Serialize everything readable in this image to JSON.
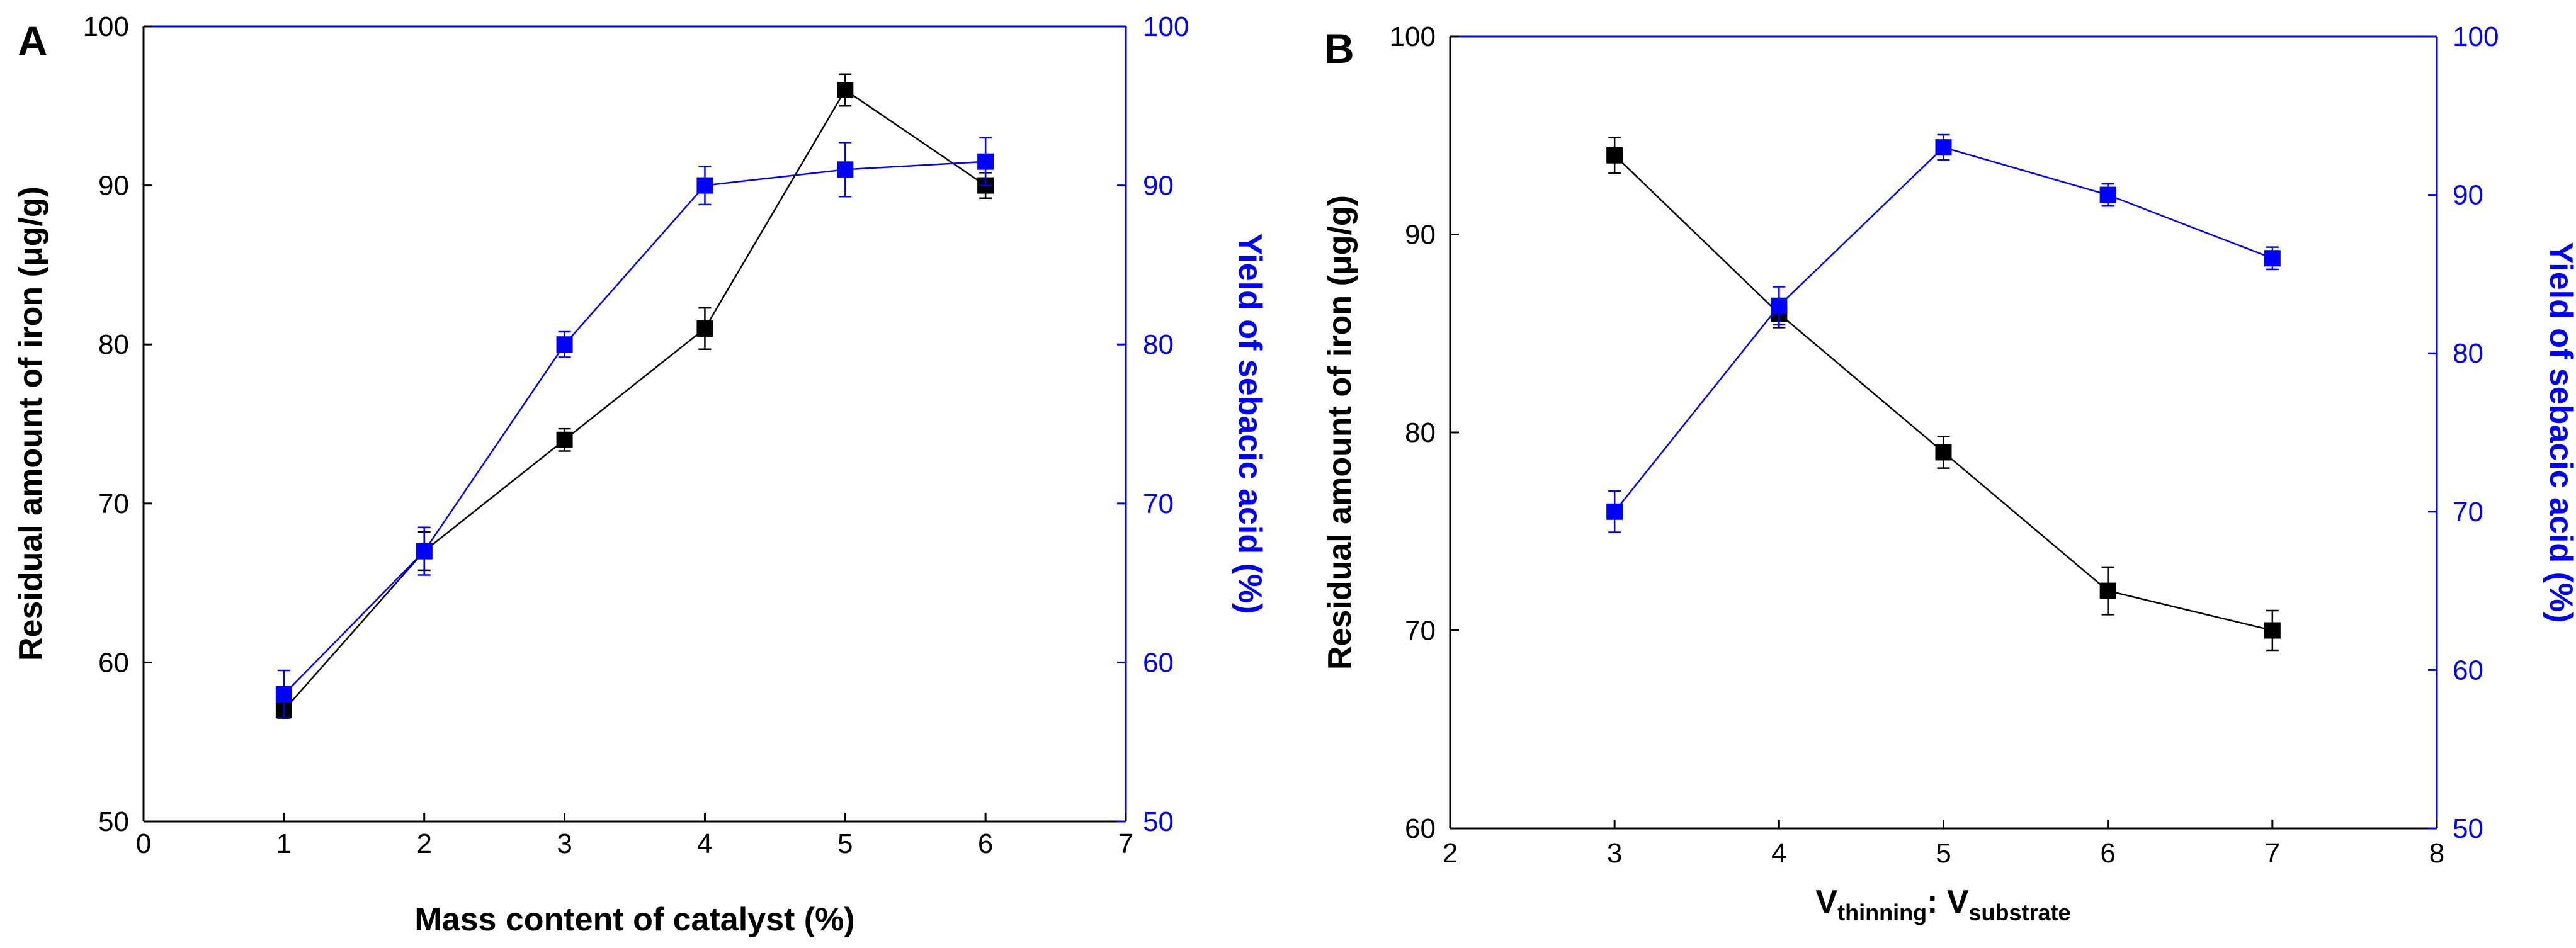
{
  "chart_data": [
    {
      "panel": "A",
      "type": "line",
      "xlabel": "Mass content of catalyst (%)",
      "ylabel_left": "Residual amount of iron (μg/g)",
      "ylabel_right": "Yield of sebacic acid (%)",
      "xlim": [
        0,
        7
      ],
      "ylim_left": [
        50,
        100
      ],
      "ylim_right": [
        50,
        100
      ],
      "xticks": [
        "0",
        "1",
        "2",
        "3",
        "4",
        "5",
        "6",
        "7"
      ],
      "yticks_left": [
        "50",
        "60",
        "70",
        "80",
        "90",
        "100"
      ],
      "yticks_right": [
        "50",
        "60",
        "70",
        "80",
        "90",
        "100"
      ],
      "series": [
        {
          "name": "Residual amount of iron",
          "axis": "left",
          "color": "#000000",
          "x": [
            1,
            2,
            3,
            4,
            5,
            6
          ],
          "y": [
            57,
            67,
            74,
            81,
            96,
            90
          ],
          "err": [
            0.5,
            1.2,
            0.7,
            1.3,
            1.0,
            0.8
          ]
        },
        {
          "name": "Yield of sebacic acid",
          "axis": "right",
          "color": "#0000ff",
          "x": [
            1,
            2,
            3,
            4,
            5,
            6
          ],
          "y": [
            58,
            67,
            80,
            90,
            91,
            91.5
          ],
          "err": [
            1.5,
            1.5,
            0.8,
            1.2,
            1.7,
            1.5
          ]
        }
      ]
    },
    {
      "panel": "B",
      "type": "line",
      "xlabel_main": "V",
      "xlabel_sub1": "thinning",
      "xlabel_sep": ": V",
      "xlabel_sub2": "substrate",
      "ylabel_left": "Residual amount of iron (μg/g)",
      "ylabel_right": "Yield of sebacic acid (%)",
      "xlim": [
        2,
        8
      ],
      "ylim_left": [
        60,
        100
      ],
      "ylim_right": [
        50,
        100
      ],
      "xticks": [
        "2",
        "3",
        "4",
        "5",
        "6",
        "7",
        "8"
      ],
      "yticks_left": [
        "60",
        "70",
        "80",
        "90",
        "100"
      ],
      "yticks_right": [
        "50",
        "60",
        "70",
        "80",
        "90",
        "100"
      ],
      "series": [
        {
          "name": "Residual amount of iron",
          "axis": "left",
          "color": "#000000",
          "x": [
            3,
            4,
            5,
            6,
            7
          ],
          "y": [
            94,
            86,
            79,
            72,
            70
          ],
          "err": [
            0.9,
            0.7,
            0.8,
            1.2,
            1.0
          ]
        },
        {
          "name": "Yield of sebacic acid",
          "axis": "right",
          "color": "#0000ff",
          "x": [
            3,
            4,
            5,
            6,
            7
          ],
          "y": [
            70,
            83,
            93,
            90,
            86
          ],
          "err": [
            1.3,
            1.2,
            0.8,
            0.7,
            0.7
          ]
        }
      ]
    }
  ]
}
